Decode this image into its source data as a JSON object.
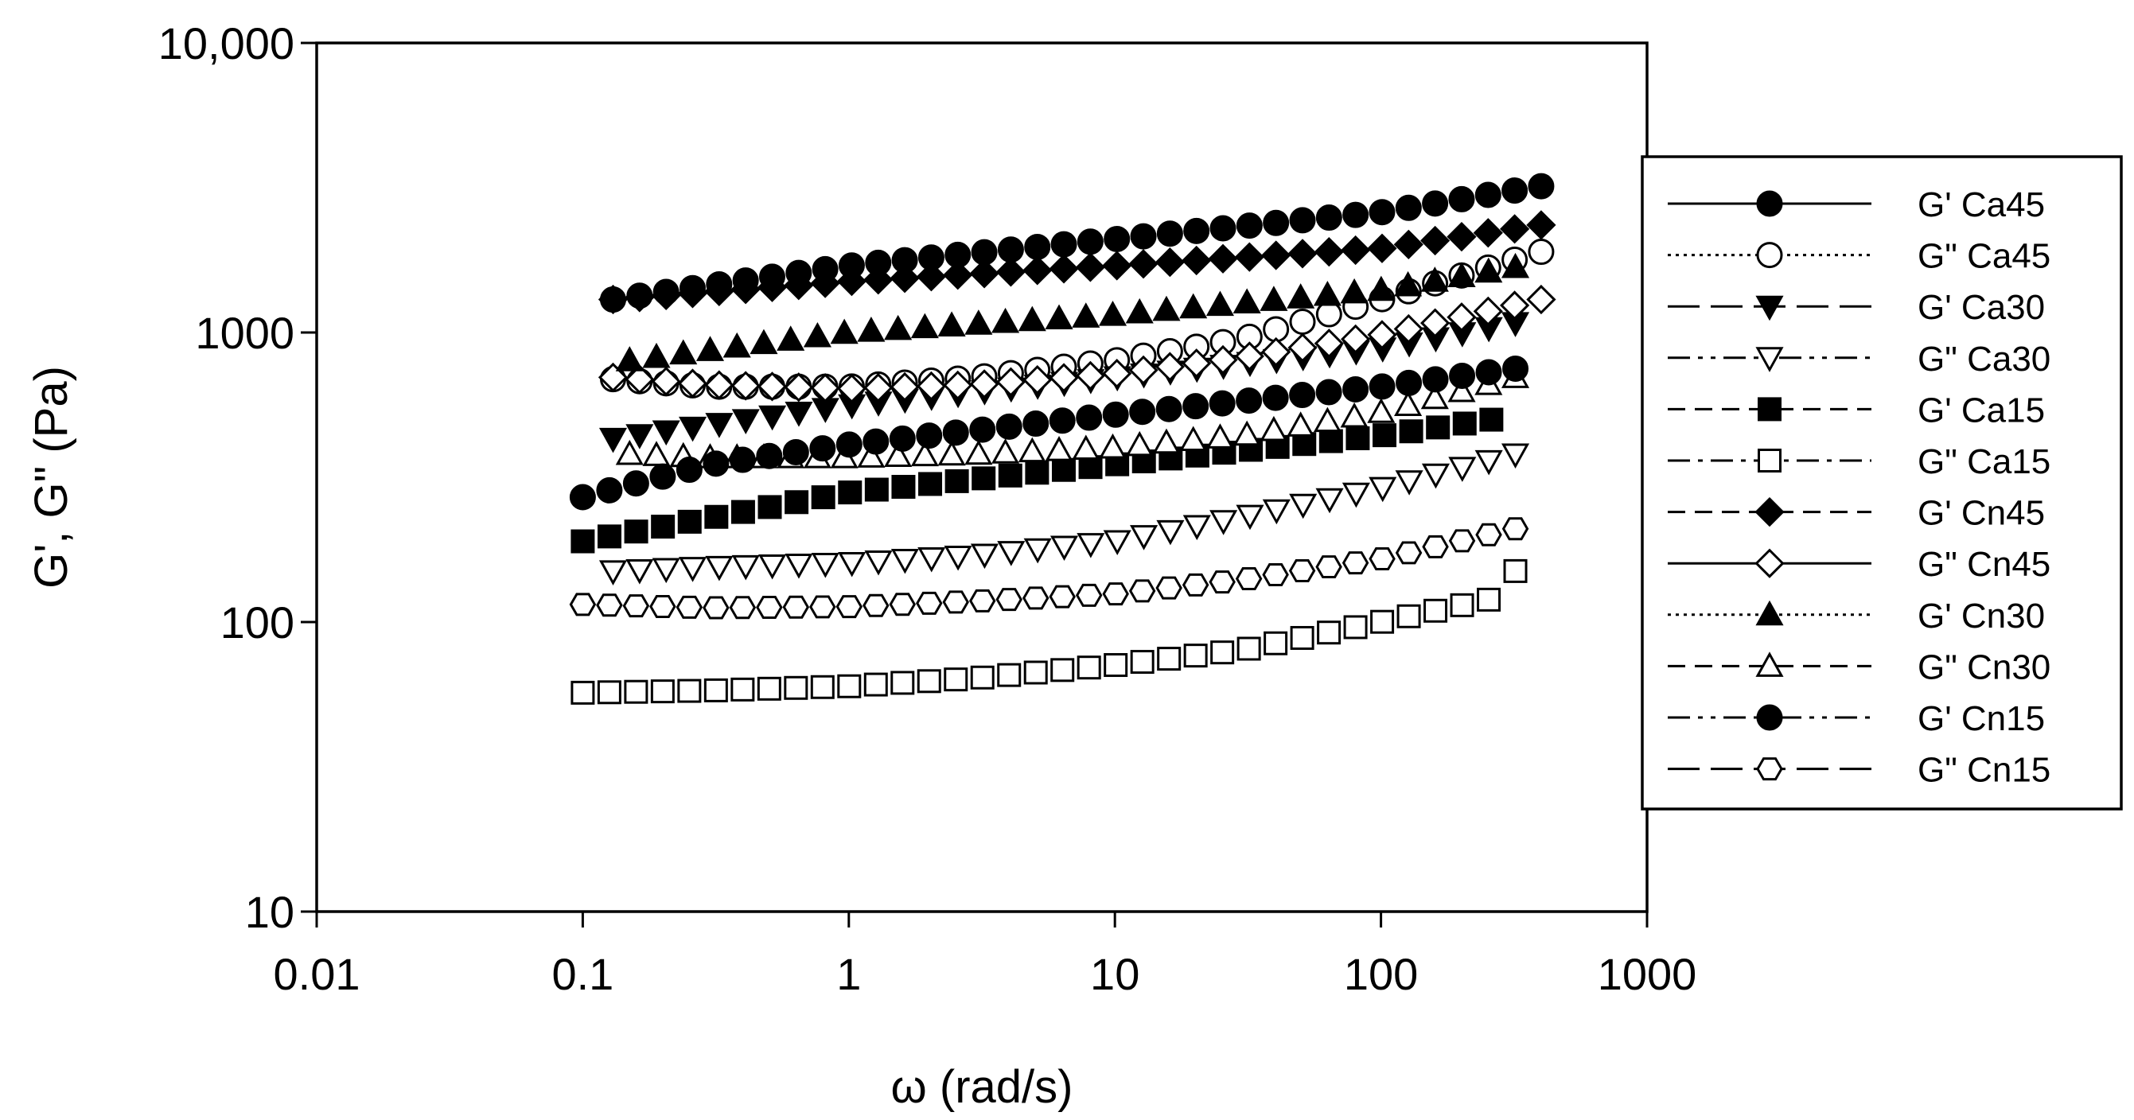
{
  "chart_data": {
    "type": "scatter",
    "xlabel": "ω (rad/s)",
    "ylabel": "G', G\" (Pa)",
    "xscale": "log",
    "yscale": "log",
    "xlim": [
      0.01,
      1000
    ],
    "ylim": [
      10,
      10000
    ],
    "x_ticks": [
      "0.01",
      "0.1",
      "1",
      "10",
      "100",
      "1000"
    ],
    "y_ticks": [
      "10",
      "100",
      "1000",
      "10,000"
    ],
    "grid": false,
    "legend_position": "right",
    "series": [
      {
        "name": "G' Ca45",
        "marker": "circle",
        "filled": true,
        "dash": "solid",
        "x": [
          0.13,
          1,
          10,
          100,
          400
        ],
        "y": [
          1300,
          1700,
          2100,
          2600,
          3200
        ]
      },
      {
        "name": "G\" Ca45",
        "marker": "circle",
        "filled": false,
        "dash": "dotted",
        "x": [
          0.13,
          0.3,
          1,
          3,
          10,
          30,
          100,
          400
        ],
        "y": [
          690,
          650,
          650,
          700,
          800,
          950,
          1300,
          1900
        ]
      },
      {
        "name": "G' Ca30",
        "marker": "triangle-down",
        "filled": true,
        "dash": "longdash",
        "x": [
          0.13,
          1,
          10,
          100,
          320
        ],
        "y": [
          430,
          560,
          700,
          880,
          1080
        ]
      },
      {
        "name": "G\" Ca30",
        "marker": "triangle-down",
        "filled": false,
        "dash": "dashdotdot",
        "x": [
          0.13,
          0.3,
          1,
          3,
          10,
          30,
          100,
          320
        ],
        "y": [
          150,
          155,
          160,
          170,
          190,
          230,
          290,
          380
        ]
      },
      {
        "name": "G' Ca15",
        "marker": "square",
        "filled": true,
        "dash": "dash",
        "x": [
          0.1,
          1,
          10,
          100,
          260
        ],
        "y": [
          190,
          280,
          350,
          440,
          500
        ]
      },
      {
        "name": "G\" Ca15",
        "marker": "square",
        "filled": false,
        "dash": "dashdot",
        "x": [
          0.1,
          0.3,
          1,
          3,
          10,
          30,
          100,
          260,
          320
        ],
        "y": [
          57,
          58,
          60,
          64,
          71,
          80,
          100,
          120,
          150
        ]
      },
      {
        "name": "G' Cn45",
        "marker": "diamond",
        "filled": true,
        "dash": "dash",
        "x": [
          0.13,
          1,
          10,
          100,
          400
        ],
        "y": [
          1300,
          1500,
          1700,
          1950,
          2350
        ]
      },
      {
        "name": "G\" Cn45",
        "marker": "diamond",
        "filled": false,
        "dash": "solid",
        "x": [
          0.13,
          0.3,
          1,
          3,
          10,
          30,
          100,
          400
        ],
        "y": [
          700,
          660,
          640,
          660,
          720,
          820,
          980,
          1300
        ]
      },
      {
        "name": "G' Cn30",
        "marker": "triangle-up",
        "filled": true,
        "dash": "dotted",
        "x": [
          0.15,
          1,
          10,
          100,
          320
        ],
        "y": [
          800,
          1000,
          1150,
          1400,
          1680
        ]
      },
      {
        "name": "G\" Cn30",
        "marker": "triangle-up",
        "filled": false,
        "dash": "dash",
        "x": [
          0.15,
          0.3,
          1,
          3,
          10,
          30,
          100,
          320
        ],
        "y": [
          380,
          370,
          370,
          380,
          400,
          440,
          530,
          700
        ]
      },
      {
        "name": "G' Cn15",
        "marker": "circle",
        "filled": true,
        "dash": "dashdotdot",
        "x": [
          0.1,
          0.3,
          1,
          10,
          100,
          320
        ],
        "y": [
          270,
          350,
          410,
          520,
          650,
          750
        ]
      },
      {
        "name": "G\" Cn15",
        "marker": "hexagon",
        "filled": false,
        "dash": "longdash",
        "x": [
          0.1,
          0.3,
          1,
          3,
          10,
          30,
          100,
          320
        ],
        "y": [
          115,
          112,
          113,
          118,
          125,
          140,
          165,
          210
        ]
      }
    ]
  }
}
